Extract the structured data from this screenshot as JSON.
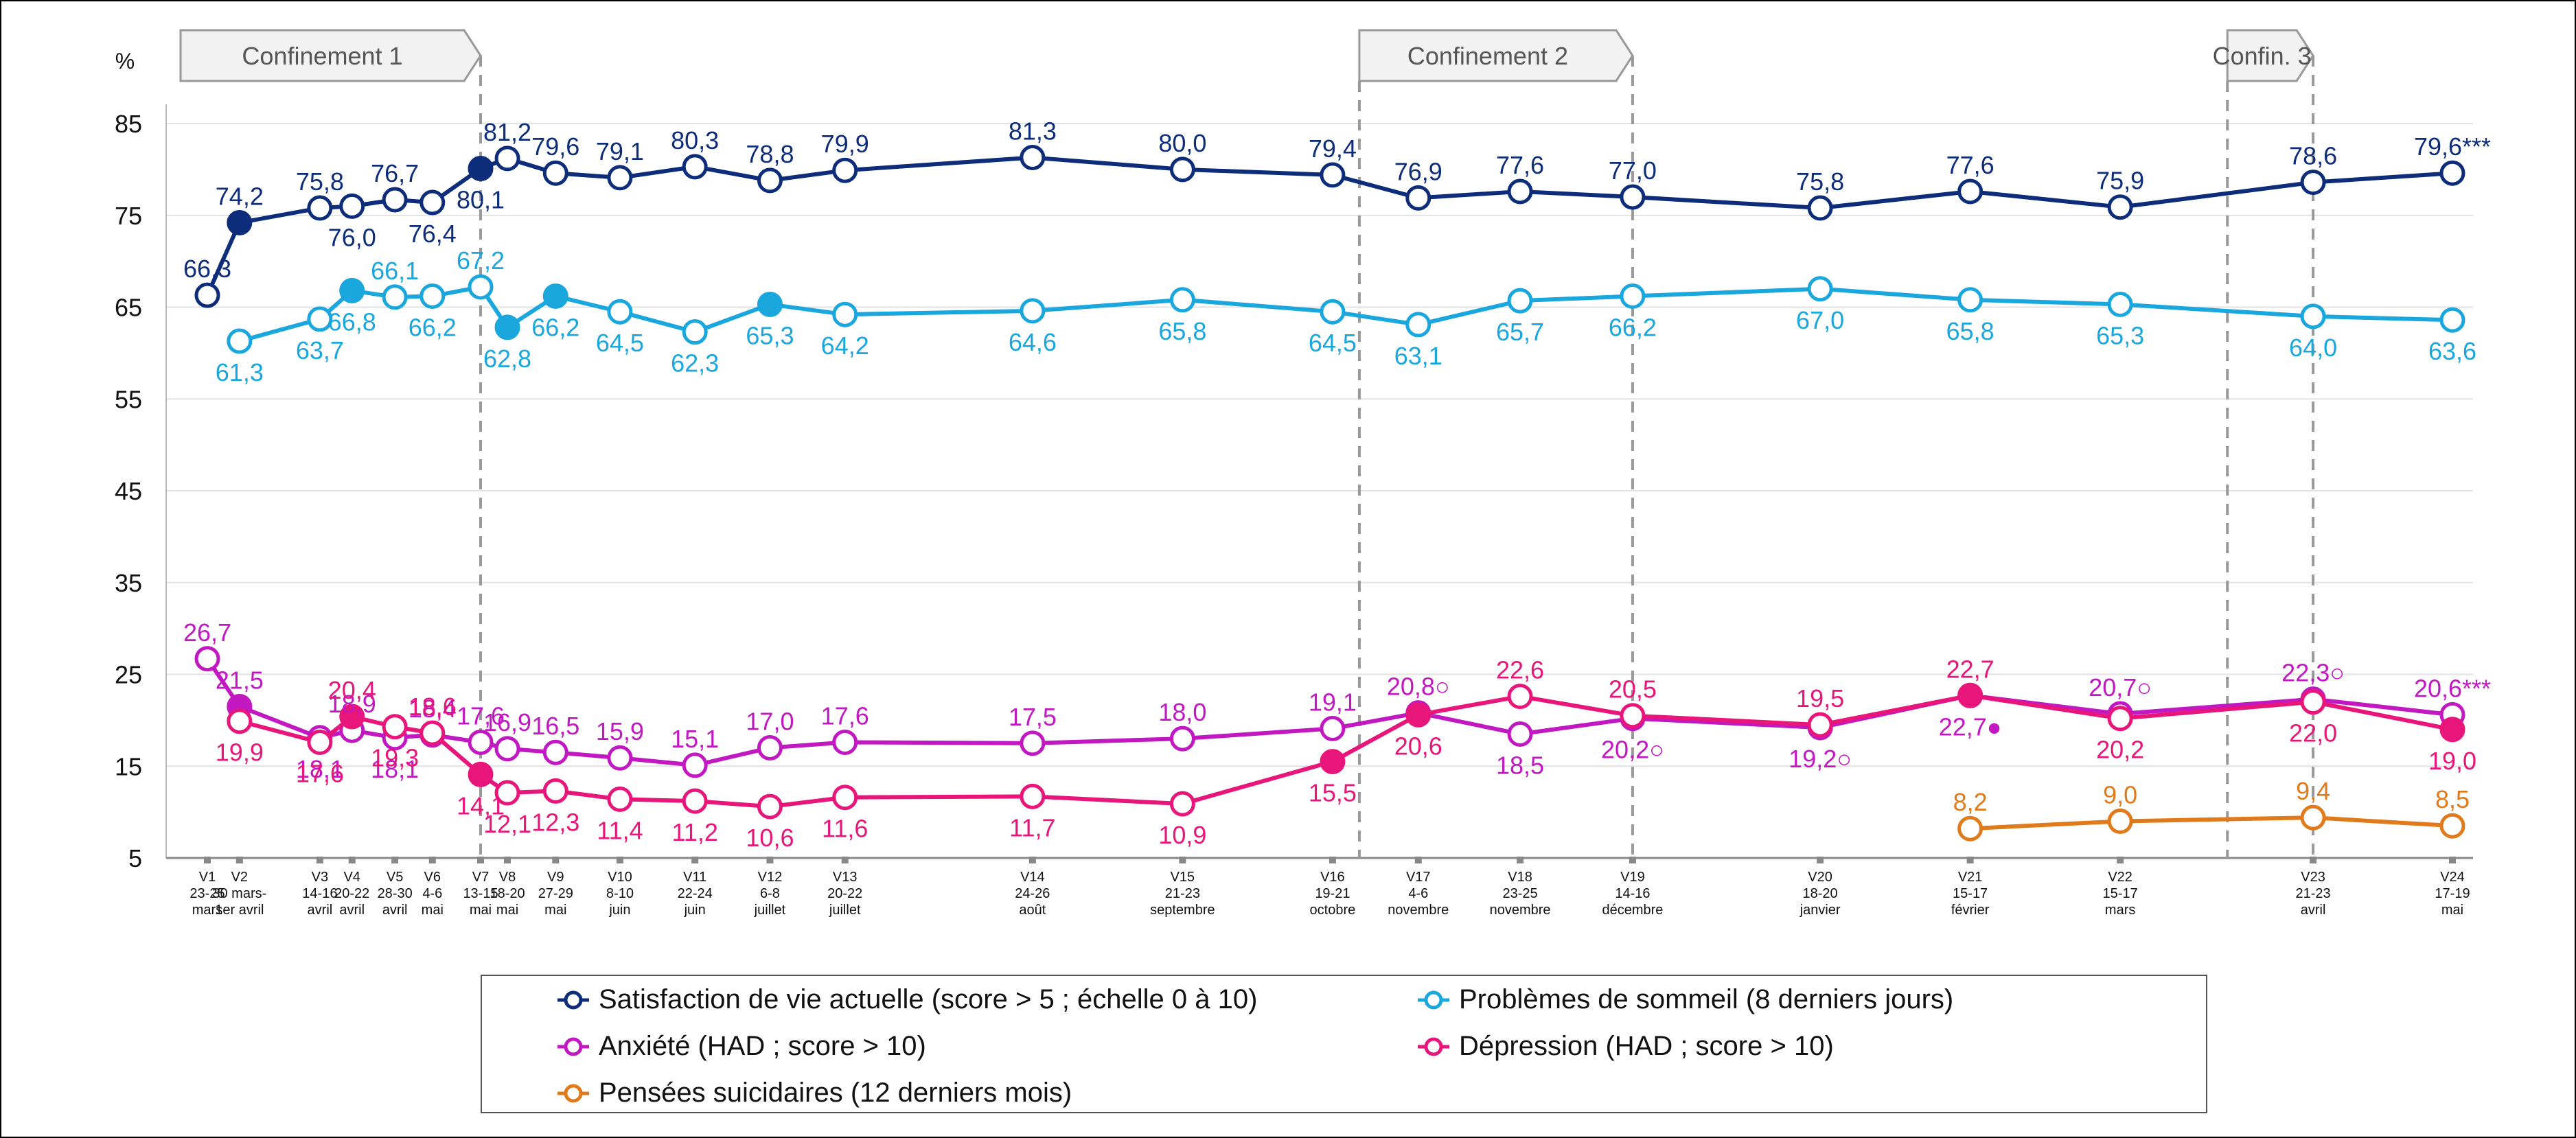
{
  "chart_data": {
    "type": "line",
    "ylabel": "%",
    "ylim": [
      5,
      85
    ],
    "yticks": [
      5,
      15,
      25,
      35,
      45,
      55,
      65,
      75,
      85
    ],
    "waves": [
      {
        "code": "V1",
        "date": "23-25",
        "month": "mars"
      },
      {
        "code": "V2",
        "date": "30 mars-",
        "month": "1er avril"
      },
      {
        "code": "V3",
        "date": "14-16",
        "month": "avril"
      },
      {
        "code": "V4",
        "date": "20-22",
        "month": "avril"
      },
      {
        "code": "V5",
        "date": "28-30",
        "month": "avril"
      },
      {
        "code": "V6",
        "date": "4-6",
        "month": "mai"
      },
      {
        "code": "V7",
        "date": "13-15",
        "month": "mai"
      },
      {
        "code": "V8",
        "date": "18-20",
        "month": "mai"
      },
      {
        "code": "V9",
        "date": "27-29",
        "month": "mai"
      },
      {
        "code": "V10",
        "date": "8-10",
        "month": "juin"
      },
      {
        "code": "V11",
        "date": "22-24",
        "month": "juin"
      },
      {
        "code": "V12",
        "date": "6-8",
        "month": "juillet"
      },
      {
        "code": "V13",
        "date": "20-22",
        "month": "juillet"
      },
      {
        "code": "V14",
        "date": "24-26",
        "month": "août"
      },
      {
        "code": "V15",
        "date": "21-23",
        "month": "septembre"
      },
      {
        "code": "V16",
        "date": "19-21",
        "month": "octobre"
      },
      {
        "code": "V17",
        "date": "4-6",
        "month": "novembre"
      },
      {
        "code": "V18",
        "date": "23-25",
        "month": "novembre"
      },
      {
        "code": "V19",
        "date": "14-16",
        "month": "décembre"
      },
      {
        "code": "V20",
        "date": "18-20",
        "month": "janvier"
      },
      {
        "code": "V21",
        "date": "15-17",
        "month": "février"
      },
      {
        "code": "V22",
        "date": "15-17",
        "month": "mars"
      },
      {
        "code": "V23",
        "date": "21-23",
        "month": "avril"
      },
      {
        "code": "V24",
        "date": "17-19",
        "month": "mai"
      }
    ],
    "day_offsets": [
      0,
      6,
      21,
      27,
      35,
      42,
      51,
      56,
      65,
      77,
      91,
      105,
      119,
      154,
      182,
      210,
      226,
      245,
      266,
      301,
      329,
      357,
      393,
      419
    ],
    "lockdowns": [
      {
        "label": "Confinement 1",
        "start_day": -5,
        "end_day": 51
      },
      {
        "label": "Confinement 2",
        "start_day": 215,
        "end_day": 266
      },
      {
        "label": "Confin. 3",
        "start_day": 377,
        "end_day": 393
      }
    ],
    "series": [
      {
        "name": "Satisfaction de vie actuelle (score > 5 ; échelle 0 à 10)",
        "color": "#0d2d7a",
        "values": [
          66.3,
          74.2,
          75.8,
          76.0,
          76.7,
          76.4,
          80.1,
          81.2,
          79.6,
          79.1,
          80.3,
          78.8,
          79.9,
          81.3,
          80.0,
          79.4,
          76.9,
          77.6,
          77.0,
          75.8,
          77.6,
          75.9,
          78.6,
          79.6
        ],
        "labels": [
          "66,3",
          "74,2",
          "75,8",
          "76,0",
          "76,7",
          "76,4",
          "80,1",
          "81,2",
          "79,6",
          "79,1",
          "80,3",
          "78,8",
          "79,9",
          "81,3",
          "80,0",
          "79,4",
          "76,9",
          "77,6",
          "77,0",
          "75,8",
          "77,6",
          "75,9",
          "78,6",
          "79,6***"
        ],
        "label_pos": [
          "above",
          "above",
          "above",
          "below",
          "above",
          "below",
          "below",
          "above",
          "above",
          "above",
          "above",
          "above",
          "above",
          "above",
          "above",
          "above",
          "above",
          "above",
          "above",
          "above",
          "above",
          "above",
          "above",
          "above"
        ],
        "filled": [
          0,
          1,
          0,
          0,
          0,
          0,
          1,
          0,
          0,
          0,
          0,
          0,
          0,
          0,
          0,
          0,
          0,
          0,
          0,
          0,
          0,
          0,
          0,
          0
        ]
      },
      {
        "name": "Problèmes de sommeil (8 derniers jours)",
        "color": "#1aa7de",
        "values": [
          null,
          61.3,
          63.7,
          66.8,
          66.1,
          66.2,
          67.2,
          62.8,
          66.2,
          64.5,
          62.3,
          65.3,
          64.2,
          64.6,
          65.8,
          64.5,
          63.1,
          65.7,
          66.2,
          67.0,
          65.8,
          65.3,
          64.0,
          63.6
        ],
        "labels": [
          "",
          "61,3",
          "63,7",
          "66,8",
          "66,1",
          "66,2",
          "67,2",
          "62,8",
          "66,2",
          "64,5",
          "62,3",
          "65,3",
          "64,2",
          "64,6",
          "65,8",
          "64,5",
          "63,1",
          "65,7",
          "66,2",
          "67,0",
          "65,8",
          "65,3",
          "64,0",
          "63,6"
        ],
        "label_pos": [
          "below",
          "below",
          "below",
          "below",
          "above",
          "below",
          "above",
          "below",
          "below",
          "below",
          "below",
          "below",
          "below",
          "below",
          "below",
          "below",
          "below",
          "below",
          "below",
          "below",
          "below",
          "below",
          "below",
          "below"
        ],
        "filled": [
          0,
          0,
          0,
          1,
          0,
          0,
          0,
          1,
          1,
          0,
          0,
          1,
          0,
          0,
          0,
          0,
          0,
          0,
          0,
          0,
          0,
          0,
          0,
          0
        ]
      },
      {
        "name": "Anxiété (HAD ; score > 10)",
        "color": "#c218c2",
        "values": [
          26.7,
          21.5,
          18.1,
          18.9,
          18.1,
          18.4,
          17.6,
          16.9,
          16.5,
          15.9,
          15.1,
          17.0,
          17.6,
          17.5,
          18.0,
          19.1,
          20.8,
          18.5,
          20.2,
          19.2,
          22.7,
          20.7,
          22.3,
          20.6
        ],
        "labels": [
          "26,7",
          "21,5",
          "18,1",
          "18,9",
          "18,1",
          "18,4",
          "17,6",
          "16,9",
          "16,5",
          "15,9",
          "15,1",
          "17,0",
          "17,6",
          "17,5",
          "18,0",
          "19,1",
          "20,8○",
          "18,5",
          "20,2○",
          "19,2○",
          "22,7●",
          "20,7○",
          "22,3○",
          "20,6***"
        ],
        "label_pos": [
          "above",
          "above",
          "below",
          "above",
          "below",
          "above",
          "above",
          "above",
          "above",
          "above",
          "above",
          "above",
          "above",
          "above",
          "above",
          "above",
          "above",
          "below",
          "below",
          "below",
          "below",
          "above",
          "above",
          "above"
        ],
        "filled": [
          0,
          1,
          0,
          0,
          0,
          0,
          0,
          0,
          0,
          0,
          0,
          0,
          0,
          0,
          0,
          0,
          0,
          0,
          0,
          0,
          0,
          0,
          0,
          0
        ]
      },
      {
        "name": "Dépression (HAD ; score > 10)",
        "color": "#e8157a",
        "values": [
          null,
          19.9,
          17.6,
          20.4,
          19.3,
          18.6,
          14.1,
          12.1,
          12.3,
          11.4,
          11.2,
          10.6,
          11.6,
          11.7,
          10.9,
          15.5,
          20.6,
          22.6,
          20.5,
          19.5,
          22.7,
          20.2,
          22.0,
          19.0
        ],
        "labels": [
          "",
          "19,9",
          "17,6",
          "20,4",
          "19,3",
          "18,6",
          "14,1",
          "12,1",
          "12,3",
          "11,4",
          "11,2",
          "10,6",
          "11,6",
          "11,7",
          "10,9",
          "15,5",
          "20,6",
          "22,6",
          "20,5",
          "19,5",
          "22,7",
          "20,2",
          "22,0",
          "19,0"
        ],
        "label_pos": [
          "below",
          "below",
          "below",
          "above",
          "below",
          "above",
          "below",
          "below",
          "below",
          "below",
          "below",
          "below",
          "below",
          "below",
          "below",
          "below",
          "below",
          "above",
          "above",
          "above",
          "above",
          "below",
          "below",
          "below"
        ],
        "filled": [
          0,
          0,
          0,
          1,
          0,
          0,
          1,
          0,
          0,
          0,
          0,
          0,
          0,
          0,
          0,
          1,
          1,
          0,
          0,
          0,
          1,
          0,
          0,
          1
        ]
      },
      {
        "name": "Pensées suicidaires (12 derniers mois)",
        "color": "#e07a1a",
        "values": [
          null,
          null,
          null,
          null,
          null,
          null,
          null,
          null,
          null,
          null,
          null,
          null,
          null,
          null,
          null,
          null,
          null,
          null,
          null,
          null,
          8.2,
          9.0,
          9.4,
          8.5
        ],
        "labels": [
          "",
          "",
          "",
          "",
          "",
          "",
          "",
          "",
          "",
          "",
          "",
          "",
          "",
          "",
          "",
          "",
          "",
          "",
          "",
          "",
          "8,2",
          "9,0",
          "9,4",
          "8,5"
        ],
        "label_pos": [
          "above",
          "above",
          "above",
          "above",
          "above",
          "above",
          "above",
          "above",
          "above",
          "above",
          "above",
          "above",
          "above",
          "above",
          "above",
          "above",
          "above",
          "above",
          "above",
          "above",
          "above",
          "above",
          "above",
          "above"
        ],
        "filled": [
          0,
          0,
          0,
          0,
          0,
          0,
          0,
          0,
          0,
          0,
          0,
          0,
          0,
          0,
          0,
          0,
          0,
          0,
          0,
          0,
          0,
          0,
          0,
          0
        ]
      }
    ]
  },
  "legend": {
    "satisfaction": "Satisfaction de vie actuelle (score > 5 ; échelle 0 à 10)",
    "sommeil": "Problèmes de sommeil (8 derniers jours)",
    "anxiete": "Anxiété (HAD ; score > 10)",
    "depression": "Dépression (HAD ; score > 10)",
    "suicide": "Pensées suicidaires (12 derniers mois)"
  }
}
